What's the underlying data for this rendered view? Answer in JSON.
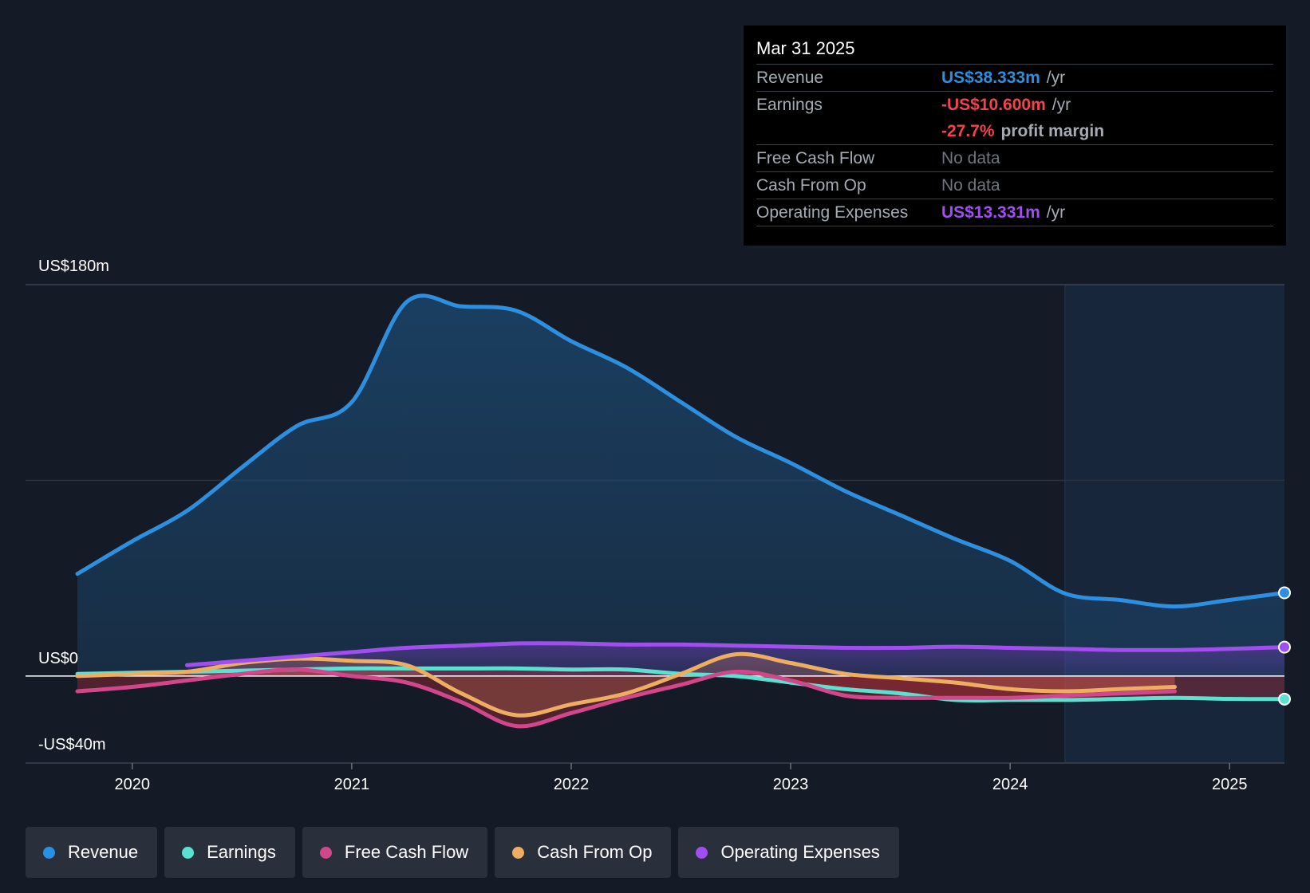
{
  "tooltip": {
    "date": "Mar 31 2025",
    "rows": [
      {
        "label": "Revenue",
        "value": "US$38.333m",
        "unit": "/yr"
      },
      {
        "label": "Earnings",
        "value": "-US$10.600m",
        "unit": "/yr"
      },
      {
        "label": "",
        "value": "-27.7%",
        "unit": "profit margin"
      },
      {
        "label": "Free Cash Flow",
        "value": "No data"
      },
      {
        "label": "Cash From Op",
        "value": "No data"
      },
      {
        "label": "Operating Expenses",
        "value": "US$13.331m",
        "unit": "/yr"
      }
    ]
  },
  "colors": {
    "revenue": "#2d8fe0",
    "earnings": "#5ce0cf",
    "free_cash_flow": "#d2468c",
    "cash_from_op": "#eeae62",
    "operating_expenses": "#a04fee",
    "negative": "#f0444f",
    "background": "#151b26"
  },
  "legend": [
    {
      "label": "Revenue",
      "color": "#2d8fe0"
    },
    {
      "label": "Earnings",
      "color": "#5ce0cf"
    },
    {
      "label": "Free Cash Flow",
      "color": "#d2468c"
    },
    {
      "label": "Cash From Op",
      "color": "#eeae62"
    },
    {
      "label": "Operating Expenses",
      "color": "#a04fee"
    }
  ],
  "chart_data": {
    "type": "area",
    "title": "",
    "xlabel": "",
    "ylabel": "",
    "xlim": [
      2019.75,
      2025.25
    ],
    "ylim": [
      -40,
      180
    ],
    "ytick_labels": [
      "US$180m",
      "US$0",
      "-US$40m"
    ],
    "xticks": [
      2020,
      2021,
      2022,
      2023,
      2024,
      2025
    ],
    "xtick_labels": [
      "2020",
      "2021",
      "2022",
      "2023",
      "2024",
      "2025"
    ],
    "forecast_start": 2024.25,
    "series": [
      {
        "name": "Revenue",
        "x": [
          2019.75,
          2020,
          2020.25,
          2020.5,
          2020.75,
          2021,
          2021.25,
          2021.5,
          2021.75,
          2022,
          2022.25,
          2022.5,
          2022.75,
          2023,
          2023.25,
          2023.5,
          2023.75,
          2024,
          2024.25,
          2024.5,
          2024.75,
          2025,
          2025.25
        ],
        "y": [
          47,
          62,
          76,
          96,
          115,
          126,
          172,
          170,
          168,
          154,
          142,
          126,
          110,
          98,
          85,
          74,
          63,
          53,
          38,
          35,
          32,
          35,
          38.3
        ]
      },
      {
        "name": "Earnings",
        "x": [
          2019.75,
          2020,
          2020.25,
          2020.5,
          2020.75,
          2021,
          2021.25,
          2021.5,
          2021.75,
          2022,
          2022.25,
          2022.5,
          2022.75,
          2023,
          2023.25,
          2023.5,
          2023.75,
          2024,
          2024.25,
          2024.5,
          2024.75,
          2025,
          2025.25
        ],
        "y": [
          1,
          1.5,
          2,
          2.5,
          3,
          3.5,
          3.5,
          3.5,
          3.5,
          3,
          3,
          1,
          0,
          -3,
          -6,
          -8,
          -11,
          -11,
          -11,
          -10.5,
          -10,
          -10.5,
          -10.6
        ]
      },
      {
        "name": "Free Cash Flow",
        "x": [
          2019.75,
          2020,
          2020.25,
          2020.5,
          2020.75,
          2021,
          2021.25,
          2021.5,
          2021.75,
          2022,
          2022.25,
          2022.5,
          2022.75,
          2023,
          2023.25,
          2023.5,
          2023.75,
          2024,
          2024.25,
          2024.5,
          2024.75
        ],
        "y": [
          -7,
          -5,
          -2,
          1,
          3,
          0,
          -3,
          -12,
          -23,
          -17,
          -10,
          -4,
          2,
          -2,
          -9,
          -10,
          -10,
          -10,
          -9,
          -8,
          -7
        ]
      },
      {
        "name": "Cash From Op",
        "x": [
          2019.75,
          2020,
          2020.25,
          2020.5,
          2020.75,
          2021,
          2021.25,
          2021.5,
          2021.75,
          2022,
          2022.25,
          2022.5,
          2022.75,
          2023,
          2023.25,
          2023.5,
          2023.75,
          2024,
          2024.25,
          2024.5,
          2024.75
        ],
        "y": [
          0,
          1,
          2,
          6,
          8,
          7,
          5,
          -8,
          -18,
          -13,
          -8,
          1,
          10,
          6,
          1,
          -1,
          -3,
          -6,
          -7,
          -6,
          -5
        ]
      },
      {
        "name": "Operating Expenses",
        "x": [
          2020.25,
          2020.5,
          2020.75,
          2021,
          2021.25,
          2021.5,
          2021.75,
          2022,
          2022.25,
          2022.5,
          2022.75,
          2023,
          2023.25,
          2023.5,
          2023.75,
          2024,
          2024.25,
          2024.5,
          2024.75,
          2025,
          2025.25
        ],
        "y": [
          5,
          7,
          9,
          11,
          13,
          14,
          15,
          15,
          14.5,
          14.5,
          14,
          13.5,
          13,
          13,
          13.5,
          13,
          12.5,
          12,
          12,
          12.5,
          13.3
        ]
      }
    ]
  }
}
